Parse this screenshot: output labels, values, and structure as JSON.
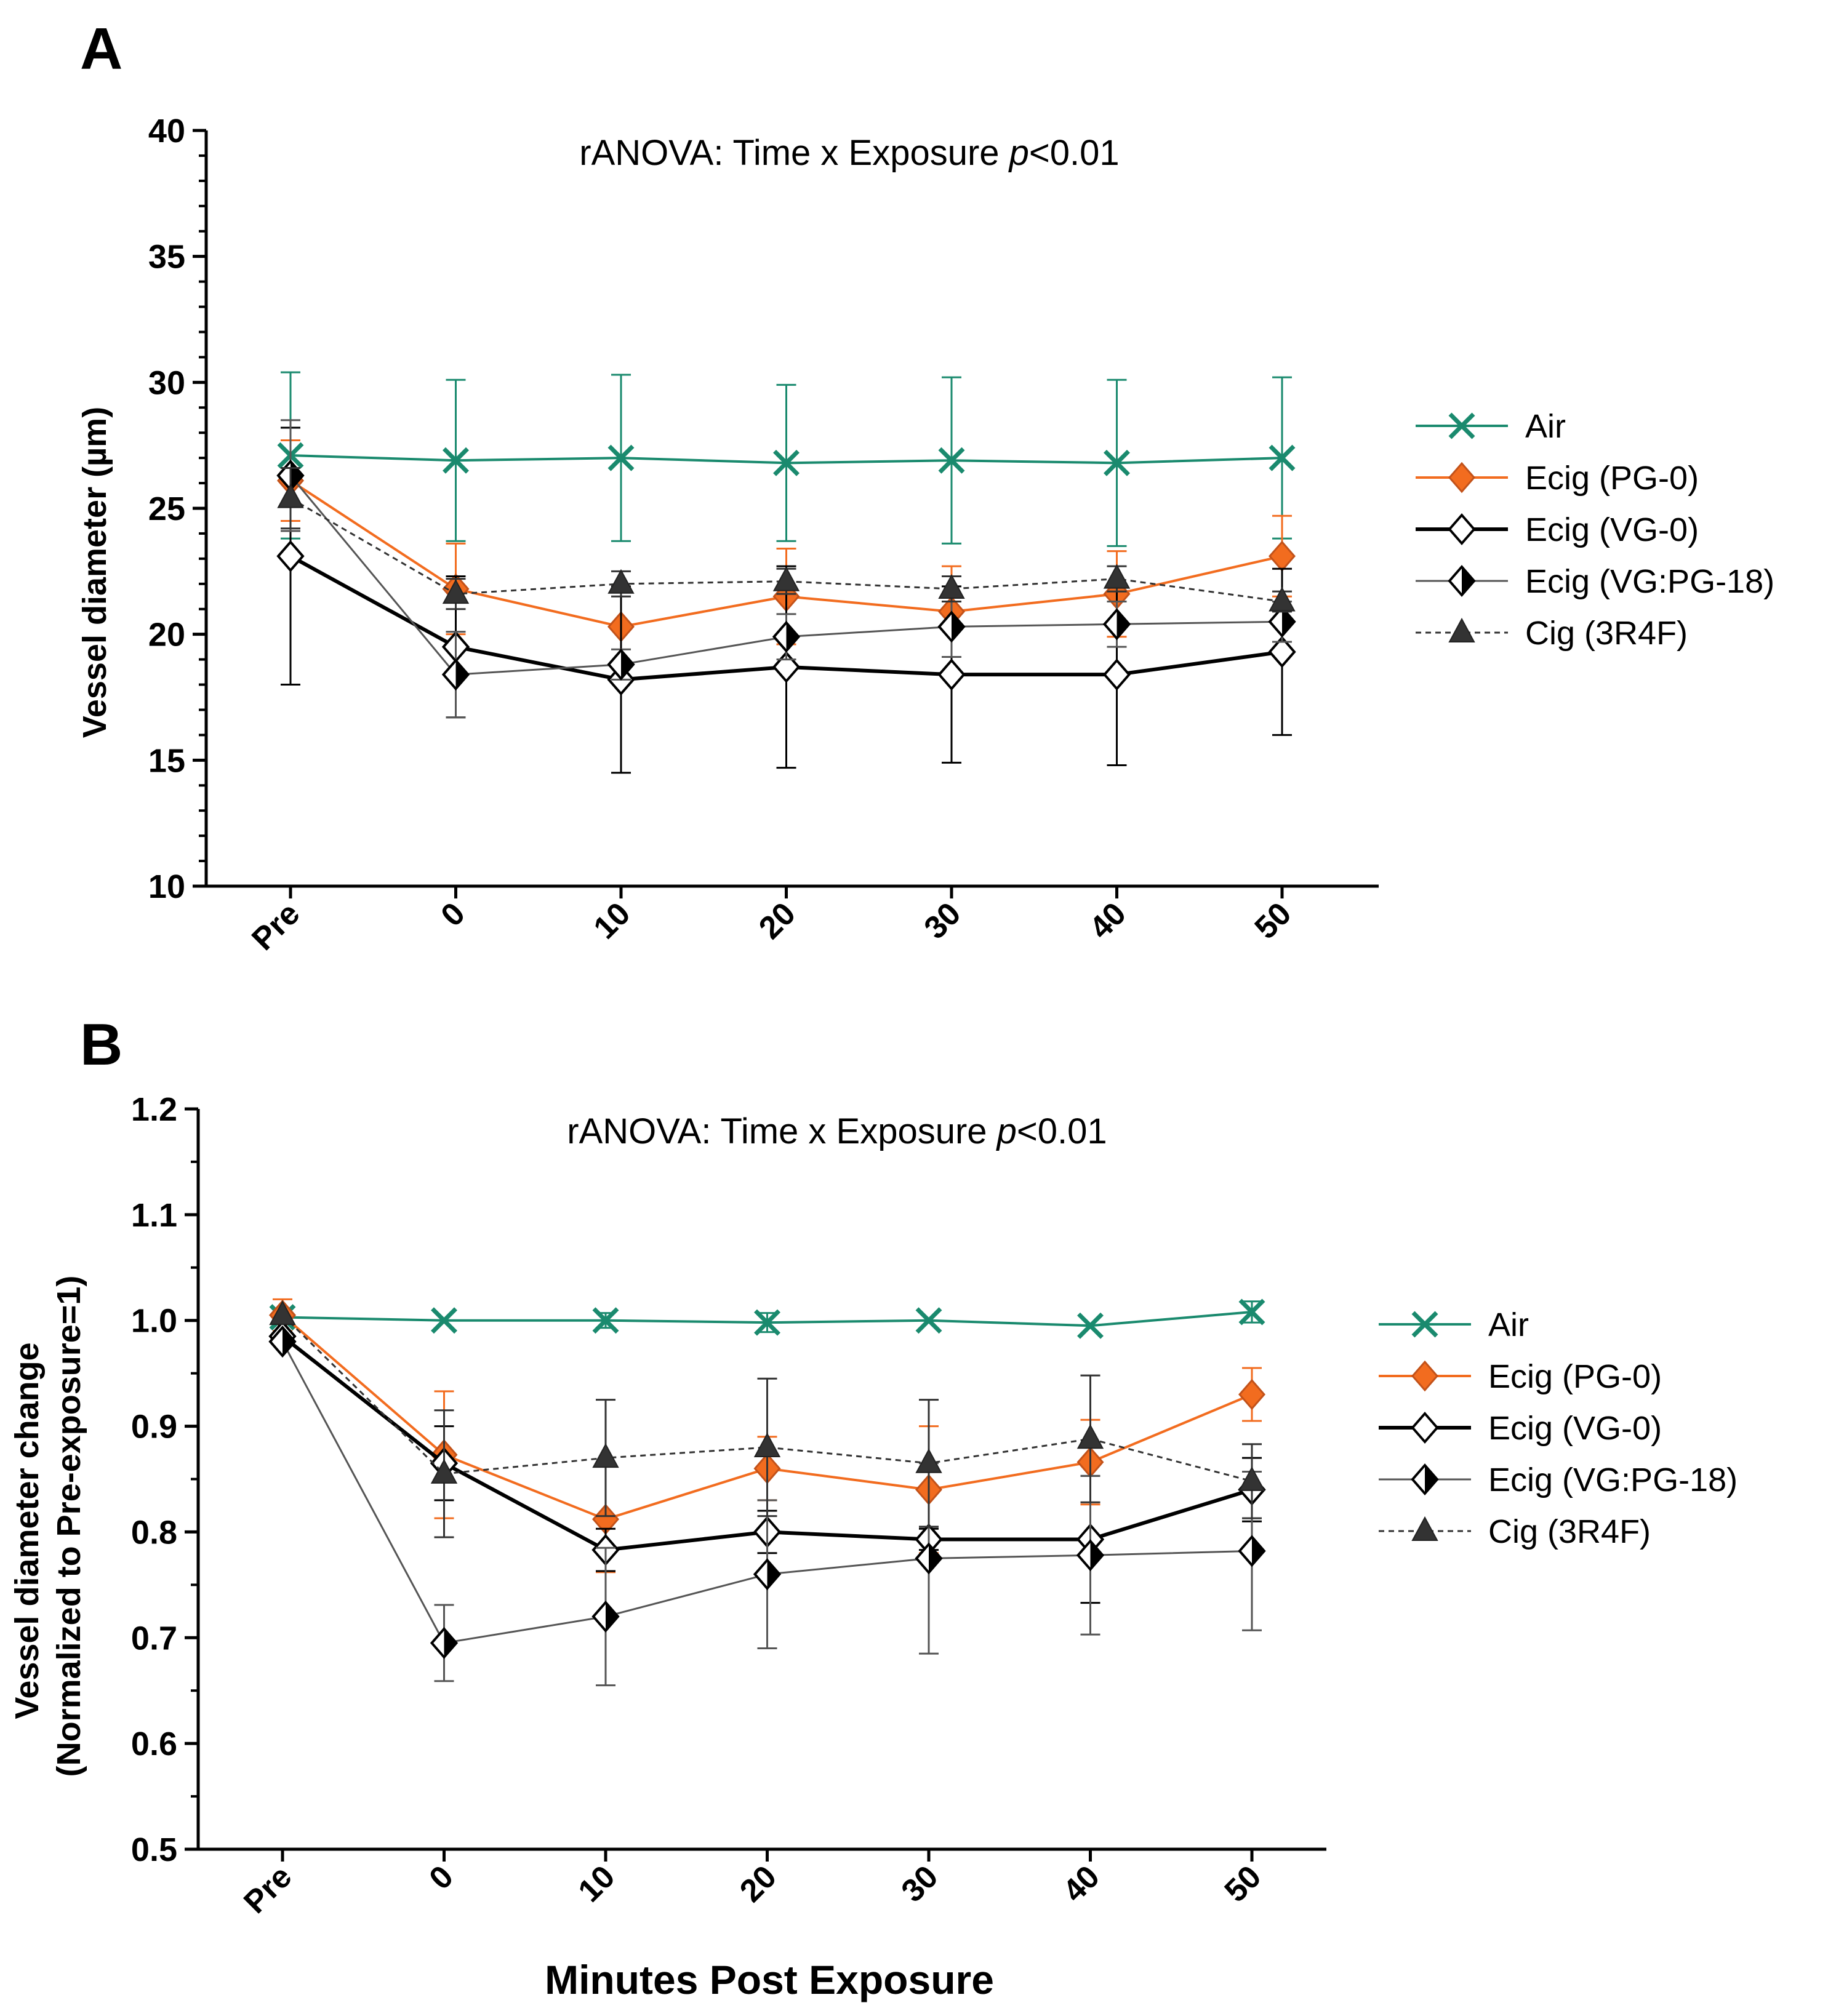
{
  "chart_data": [
    {
      "type": "line",
      "panel": "A",
      "title": "rANOVA: Time x Exposure p<0.01",
      "title_prefix": "rANOVA: Time x Exposure ",
      "title_p": "p",
      "title_suffix": "<0.01",
      "xlabel": "",
      "ylabel": "Vessel diameter (µm)",
      "categories": [
        "Pre",
        "0",
        "10",
        "20",
        "30",
        "40",
        "50"
      ],
      "ylim": [
        10,
        40
      ],
      "yticks": [
        "10",
        "15",
        "20",
        "25",
        "30",
        "35",
        "40"
      ],
      "grid": false,
      "legend_position": "right",
      "series": [
        {
          "name": "Air",
          "color": "#1a8a6e",
          "marker": "x",
          "line": "solid",
          "values": [
            27.1,
            26.9,
            27.0,
            26.8,
            26.9,
            26.8,
            27.0
          ],
          "errors": [
            3.3,
            3.2,
            3.3,
            3.1,
            3.3,
            3.3,
            3.2
          ]
        },
        {
          "name": "Ecig (PG-0)",
          "color": "#f26c1f",
          "marker": "diamond-filled",
          "line": "solid",
          "values": [
            26.1,
            21.8,
            20.3,
            21.5,
            20.9,
            21.6,
            23.1
          ],
          "errors": [
            1.6,
            1.8,
            1.6,
            1.9,
            1.8,
            1.7,
            1.6
          ]
        },
        {
          "name": "Ecig (VG-0)",
          "color": "#000000",
          "marker": "diamond-open",
          "line": "solid-thick",
          "values": [
            23.1,
            19.5,
            18.2,
            18.7,
            18.4,
            18.4,
            19.3
          ],
          "errors": [
            5.1,
            2.8,
            3.7,
            4.0,
            3.5,
            3.6,
            3.3
          ]
        },
        {
          "name": "Ecig (VG:PG-18)",
          "color": "#555555",
          "marker": "diamond-half",
          "line": "solid-thin",
          "values": [
            26.3,
            18.4,
            18.8,
            19.9,
            20.3,
            20.4,
            20.5
          ],
          "errors": [
            2.2,
            1.7,
            0.6,
            0.9,
            1.2,
            0.9,
            0.8
          ]
        },
        {
          "name": "Cig (3R4F)",
          "color": "#333333",
          "marker": "triangle",
          "line": "dashed",
          "values": [
            25.4,
            21.6,
            22.0,
            22.1,
            21.8,
            22.2,
            21.3
          ],
          "errors": [
            1.2,
            0.6,
            0.5,
            0.5,
            0.5,
            0.5,
            0.4
          ]
        }
      ]
    },
    {
      "type": "line",
      "panel": "B",
      "title": "rANOVA: Time x Exposure p<0.01",
      "title_prefix": "rANOVA: Time x Exposure ",
      "title_p": "p",
      "title_suffix": "<0.01",
      "xlabel": "Minutes Post Exposure",
      "ylabel_line1": "Vessel diameter change",
      "ylabel_line2": "(Normalized to Pre-exposure=1)",
      "categories": [
        "Pre",
        "0",
        "10",
        "20",
        "30",
        "40",
        "50"
      ],
      "ylim": [
        0.5,
        1.2
      ],
      "yticks": [
        "0.5",
        "0.6",
        "0.7",
        "0.8",
        "0.9",
        "1.0",
        "1.1",
        "1.2"
      ],
      "grid": false,
      "legend_position": "right",
      "series": [
        {
          "name": "Air",
          "color": "#1a8a6e",
          "marker": "x",
          "line": "solid",
          "values": [
            1.003,
            1.0,
            1.0,
            0.998,
            1.0,
            0.995,
            1.008
          ],
          "errors": [
            0.005,
            0.0,
            0.007,
            0.009,
            0.0,
            0.0,
            0.01
          ]
        },
        {
          "name": "Ecig (PG-0)",
          "color": "#f26c1f",
          "marker": "diamond-filled",
          "line": "solid",
          "values": [
            1.005,
            0.873,
            0.812,
            0.86,
            0.84,
            0.866,
            0.93
          ],
          "errors": [
            0.015,
            0.06,
            0.05,
            0.03,
            0.06,
            0.04,
            0.025
          ]
        },
        {
          "name": "Ecig (VG-0)",
          "color": "#000000",
          "marker": "diamond-open",
          "line": "solid-thick",
          "values": [
            0.985,
            0.865,
            0.783,
            0.8,
            0.793,
            0.793,
            0.84
          ],
          "errors": [
            0.0,
            0.035,
            0.02,
            0.02,
            0.01,
            0.06,
            0.03
          ]
        },
        {
          "name": "Ecig (VG:PG-18)",
          "color": "#555555",
          "marker": "diamond-half",
          "line": "solid-thin",
          "values": [
            0.98,
            0.695,
            0.72,
            0.76,
            0.775,
            0.778,
            0.782
          ],
          "errors": [
            0.0,
            0.036,
            0.065,
            0.07,
            0.09,
            0.075,
            0.075
          ]
        },
        {
          "name": "Cig (3R4F)",
          "color": "#333333",
          "marker": "triangle",
          "line": "dashed",
          "values": [
            1.005,
            0.855,
            0.87,
            0.88,
            0.865,
            0.888,
            0.848
          ],
          "errors": [
            0.0,
            0.06,
            0.055,
            0.065,
            0.06,
            0.06,
            0.035
          ]
        }
      ]
    }
  ]
}
